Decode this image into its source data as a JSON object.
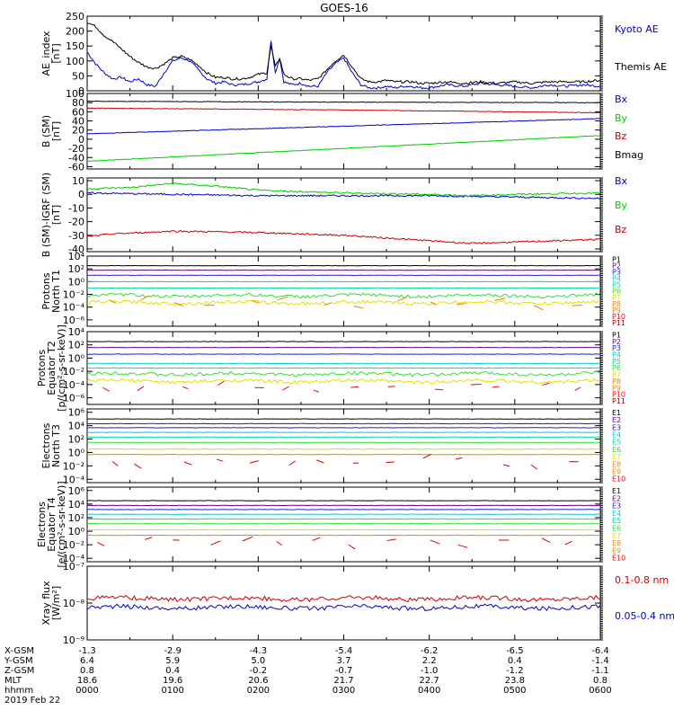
{
  "title": "GOES-16",
  "colors": {
    "black": "#000000",
    "blue": "#0000cc",
    "green": "#00cc00",
    "red": "#cc0000",
    "purple": "#6a0080",
    "navy": "#2020c8",
    "cyan": "#00c8e0",
    "teal": "#00d8a0",
    "lgreen": "#30e030",
    "yellow": "#e0e000",
    "orange": "#f08000",
    "lred": "#e01010",
    "dred": "#a00000"
  },
  "chart_data": [
    {
      "type": "line",
      "id": "ae",
      "ylabel": [
        "AE_index",
        "[nT]"
      ],
      "yticks": [
        "250",
        "200",
        "150",
        "100",
        "50",
        "0"
      ],
      "ylim": [
        0,
        250
      ],
      "x_range": [
        0,
        6
      ],
      "series": [
        {
          "name": "Kyoto AE",
          "color": "#0000cc",
          "x": [
            0,
            0.1,
            0.2,
            0.3,
            0.4,
            0.5,
            0.6,
            0.7,
            0.8,
            0.9,
            1.0,
            1.1,
            1.2,
            1.3,
            1.4,
            1.5,
            1.6,
            1.7,
            1.8,
            1.9,
            2.0,
            2.1,
            2.15,
            2.2,
            2.25,
            2.3,
            2.4,
            2.5,
            2.6,
            2.7,
            2.8,
            2.9,
            3.0,
            3.1,
            3.2,
            3.3,
            3.4,
            3.5,
            3.6,
            3.7,
            3.8,
            3.9,
            4.0,
            4.2,
            4.4,
            4.6,
            4.8,
            5.0,
            5.2,
            5.4,
            5.6,
            5.8,
            6.0
          ],
          "y": [
            130,
            90,
            60,
            40,
            45,
            30,
            40,
            20,
            15,
            60,
            100,
            110,
            100,
            70,
            40,
            25,
            30,
            20,
            20,
            25,
            30,
            40,
            170,
            60,
            110,
            30,
            20,
            25,
            15,
            15,
            60,
            90,
            110,
            60,
            20,
            10,
            10,
            15,
            10,
            15,
            15,
            10,
            10,
            20,
            15,
            25,
            20,
            15,
            10,
            20,
            15,
            20,
            15
          ]
        },
        {
          "name": "Themis AE",
          "color": "#000000",
          "x": [
            0,
            0.1,
            0.2,
            0.3,
            0.4,
            0.5,
            0.6,
            0.7,
            0.8,
            0.9,
            1.0,
            1.1,
            1.2,
            1.3,
            1.4,
            1.5,
            1.6,
            1.7,
            1.8,
            1.9,
            2.0,
            2.1,
            2.15,
            2.2,
            2.25,
            2.3,
            2.4,
            2.5,
            2.6,
            2.7,
            2.8,
            2.9,
            3.0,
            3.1,
            3.2,
            3.3,
            3.4,
            3.5,
            3.6,
            3.7,
            3.8,
            3.9,
            4.0,
            4.2,
            4.4,
            4.6,
            4.8,
            5.0,
            5.2,
            5.4,
            5.6,
            5.8,
            6.0
          ],
          "y": [
            230,
            215,
            185,
            165,
            140,
            115,
            95,
            80,
            75,
            90,
            110,
            115,
            105,
            85,
            60,
            45,
            45,
            40,
            40,
            45,
            55,
            60,
            150,
            80,
            110,
            55,
            40,
            40,
            35,
            40,
            70,
            100,
            120,
            80,
            40,
            30,
            30,
            35,
            30,
            30,
            30,
            25,
            25,
            30,
            25,
            30,
            25,
            30,
            25,
            30,
            30,
            30,
            35
          ]
        }
      ]
    },
    {
      "type": "line",
      "id": "bsm",
      "ylabel": [
        "B (SM)",
        "[nT]"
      ],
      "yticks": [
        "100",
        "80",
        "60",
        "40",
        "20",
        "0",
        "-20",
        "-40",
        "-60"
      ],
      "ylim": [
        -65,
        100
      ],
      "x_range": [
        0,
        6
      ],
      "series": [
        {
          "name": "Bx",
          "color": "#0000cc",
          "x": [
            0,
            6
          ],
          "y": [
            12,
            45
          ]
        },
        {
          "name": "By",
          "color": "#00cc00",
          "x": [
            0,
            6
          ],
          "y": [
            -48,
            8
          ]
        },
        {
          "name": "Bz",
          "color": "#cc0000",
          "x": [
            0,
            3,
            6
          ],
          "y": [
            68,
            64,
            58
          ]
        },
        {
          "name": "Bmag",
          "color": "#000000",
          "x": [
            0,
            3,
            6
          ],
          "y": [
            83,
            81,
            80
          ]
        }
      ]
    },
    {
      "type": "line",
      "id": "bigrf",
      "ylabel": [
        "B (SM)-IGRF (SM)",
        "[nT]"
      ],
      "yticks": [
        "10",
        "0",
        "-10",
        "-20",
        "-30",
        "-40"
      ],
      "ylim": [
        -42,
        12
      ],
      "x_range": [
        0,
        6
      ],
      "series": [
        {
          "name": "Bx",
          "color": "#0000cc",
          "x": [
            0,
            1,
            2,
            3,
            4,
            5,
            6
          ],
          "y": [
            1,
            0,
            -1,
            -1,
            -1,
            -2,
            -3
          ]
        },
        {
          "name": "By",
          "color": "#00cc00",
          "x": [
            0,
            0.5,
            1,
            1.5,
            2,
            3,
            4,
            4.5,
            5,
            6
          ],
          "y": [
            4,
            5,
            8,
            6,
            3,
            1,
            0,
            -1,
            0,
            1
          ]
        },
        {
          "name": "Bz",
          "color": "#cc0000",
          "x": [
            0,
            0.3,
            1,
            2,
            3,
            4,
            4.5,
            5,
            5.5,
            6
          ],
          "y": [
            -31,
            -29,
            -27,
            -28,
            -30,
            -34,
            -36,
            -35,
            -34,
            -33
          ]
        }
      ]
    },
    {
      "type": "line",
      "id": "protons1",
      "ylabel": [
        "Protons",
        "North T1"
      ],
      "yticks": [
        "10⁴",
        "10²",
        "10⁰",
        "10⁻²",
        "10⁻⁴",
        "10⁻⁶"
      ],
      "ylim_log": [
        -7,
        4
      ],
      "x_range": [
        0,
        6
      ],
      "legend": [
        "P1",
        "P2",
        "P3",
        "P4",
        "P5",
        "P6",
        "P7",
        "P8",
        "P9",
        "P10",
        "P11"
      ],
      "series": [
        {
          "name": "P1",
          "color": "#000000",
          "level": 2.5
        },
        {
          "name": "P2",
          "color": "#6a0080",
          "level": 1.8
        },
        {
          "name": "P3",
          "color": "#2020c8",
          "level": 1.0
        },
        {
          "name": "P4",
          "color": "#00c8e0",
          "level": 0.0
        },
        {
          "name": "P5",
          "color": "#00d8a0",
          "level": -1.0
        },
        {
          "name": "P6",
          "color": "#30e030",
          "level": -2.2,
          "noisy": true
        },
        {
          "name": "P7",
          "color": "#e0e000",
          "level": -3.3,
          "noisy": true
        },
        {
          "name": "P9",
          "color": "#f08000",
          "level": -3.6,
          "sparse": true
        }
      ]
    },
    {
      "type": "line",
      "id": "protons2",
      "ylabel": [
        "Protons",
        "Equator T2",
        "[p/(cm²-s-sr-keV)]"
      ],
      "yticks": [
        "10⁴",
        "10²",
        "10⁰",
        "10⁻²",
        "10⁻⁴",
        "10⁻⁶"
      ],
      "ylim_log": [
        -7,
        4
      ],
      "x_range": [
        0,
        6
      ],
      "legend": [
        "P1",
        "P2",
        "P3",
        "P4",
        "P5",
        "P6",
        "P7",
        "P8",
        "P9",
        "P10",
        "P11"
      ],
      "series": [
        {
          "name": "P1",
          "color": "#000000",
          "level": 2.5
        },
        {
          "name": "P2",
          "color": "#6a0080",
          "level": 1.6
        },
        {
          "name": "P3",
          "color": "#2020c8",
          "level": 0.6
        },
        {
          "name": "P4",
          "color": "#00c8e0",
          "level": -0.8
        },
        {
          "name": "P5",
          "color": "#00d8a0",
          "level": -1.5
        },
        {
          "name": "P6",
          "color": "#30e030",
          "level": -2.4,
          "noisy": true
        },
        {
          "name": "P7",
          "color": "#e0e000",
          "level": -3.5,
          "noisy": true
        },
        {
          "name": "P9",
          "color": "#e01010",
          "level": -4.8,
          "sparse": true
        }
      ]
    },
    {
      "type": "line",
      "id": "electrons1",
      "ylabel": [
        "Electrons",
        "North T3"
      ],
      "yticks": [
        "10⁶",
        "10⁴",
        "10²",
        "10⁰",
        "10⁻²",
        "10⁻⁴"
      ],
      "ylim_log": [
        -4.5,
        6.5
      ],
      "x_range": [
        0,
        6
      ],
      "legend": [
        "E1",
        "E2",
        "E3",
        "E4",
        "E5",
        "E6",
        "E7",
        "E8",
        "E9",
        "E10"
      ],
      "series": [
        {
          "name": "E1",
          "color": "#000000",
          "level": 5.0
        },
        {
          "name": "E2",
          "color": "#6a0080",
          "level": 4.3
        },
        {
          "name": "E3",
          "color": "#2020c8",
          "level": 3.7
        },
        {
          "name": "E4",
          "color": "#00c8e0",
          "level": 3.0
        },
        {
          "name": "E5",
          "color": "#00d8a0",
          "level": 2.3
        },
        {
          "name": "E6",
          "color": "#30e030",
          "level": 1.5
        },
        {
          "name": "E7",
          "color": "#e0e000",
          "level": 0.5
        },
        {
          "name": "E8",
          "color": "#f08000",
          "level": -0.3
        },
        {
          "name": "E9",
          "color": "#cc0000",
          "level": -1.6,
          "sparse": true
        }
      ]
    },
    {
      "type": "line",
      "id": "electrons2",
      "ylabel": [
        "Electrons",
        "Equator T4",
        "[e/(cm²-s-sr-keV)]"
      ],
      "yticks": [
        "10⁶",
        "10⁴",
        "10²",
        "10⁰",
        "10⁻²",
        "10⁻⁴"
      ],
      "ylim_log": [
        -4.5,
        6.5
      ],
      "x_range": [
        0,
        6
      ],
      "legend": [
        "E1",
        "E2",
        "E3",
        "E4",
        "E5",
        "E6",
        "E7",
        "E8",
        "E9",
        "E10"
      ],
      "series": [
        {
          "name": "E1",
          "color": "#000000",
          "level": 4.5
        },
        {
          "name": "E2",
          "color": "#6a0080",
          "level": 3.8
        },
        {
          "name": "E3",
          "color": "#2020c8",
          "level": 3.2
        },
        {
          "name": "E4",
          "color": "#00c8e0",
          "level": 2.5
        },
        {
          "name": "E5",
          "color": "#00d8a0",
          "level": 1.8
        },
        {
          "name": "E6",
          "color": "#30e030",
          "level": 1.1
        },
        {
          "name": "E7",
          "color": "#e0e000",
          "level": 0.2
        },
        {
          "name": "E8",
          "color": "#f08000",
          "level": -0.6
        },
        {
          "name": "E9",
          "color": "#cc0000",
          "level": -1.7,
          "sparse": true
        }
      ]
    },
    {
      "type": "line",
      "id": "xray",
      "ylabel": [
        "Xray flux",
        "[W/m²]"
      ],
      "yticks": [
        "10⁻⁷",
        "10⁻⁸",
        "10⁻⁹"
      ],
      "ylim_log": [
        -9,
        -7
      ],
      "x_range": [
        0,
        6
      ],
      "series": [
        {
          "name": "0.1-0.8 nm",
          "color": "#cc0000",
          "level": -7.88,
          "noisy": true
        },
        {
          "name": "0.05-0.4 nm",
          "color": "#0000cc",
          "level": -8.12,
          "noisy": true
        }
      ]
    }
  ],
  "orbit": {
    "labels": [
      "X-GSM",
      "Y-GSM",
      "Z-GSM",
      "MLT",
      "hhmm"
    ],
    "date": "2019 Feb 22",
    "rows": [
      [
        "-1.3",
        "-2.9",
        "-4.3",
        "-5.4",
        "-6.2",
        "-6.5",
        "-6.4"
      ],
      [
        "6.4",
        "5.9",
        "5.0",
        "3.7",
        "2.2",
        "0.4",
        "-1.4"
      ],
      [
        "0.8",
        "0.4",
        "-0.2",
        "-0.7",
        "-1.0",
        "-1.2",
        "-1.1"
      ],
      [
        "18.6",
        "19.6",
        "20.6",
        "21.7",
        "22.7",
        "23.8",
        "0.8"
      ],
      [
        "0000",
        "0100",
        "0200",
        "0300",
        "0400",
        "0500",
        "0600"
      ]
    ]
  }
}
